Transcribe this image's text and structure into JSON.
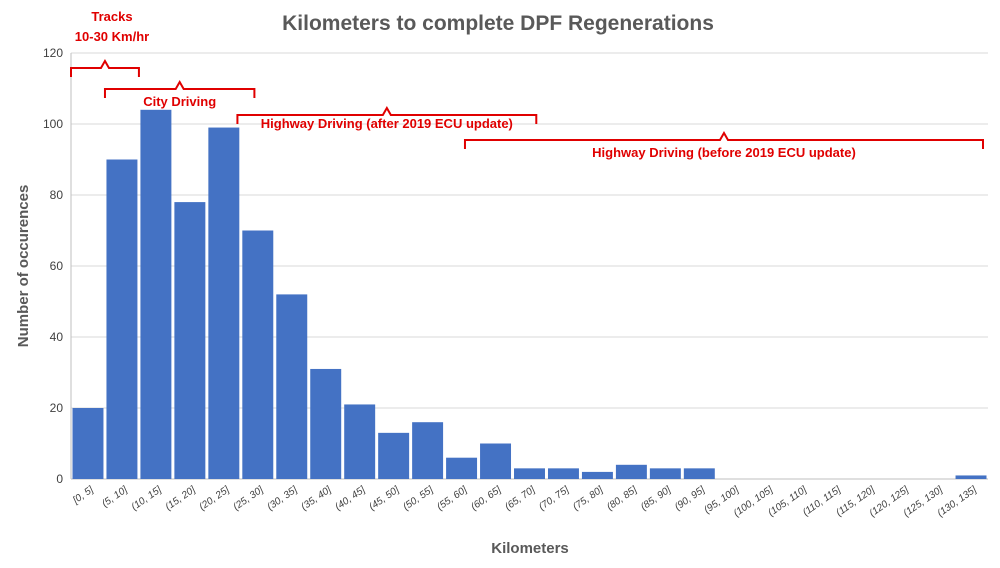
{
  "chart_data": {
    "type": "bar",
    "title": "Kilometers to complete DPF Regenerations",
    "xlabel": "Kilometers",
    "ylabel": "Number of occurences",
    "ylim": [
      0,
      120
    ],
    "yticks": [
      0,
      20,
      40,
      60,
      80,
      100,
      120
    ],
    "grid": true,
    "bar_color": "#4472c4",
    "annotation_color": "#e00000",
    "categories": [
      "[0, 5]",
      "(5, 10]",
      "(10, 15]",
      "(15, 20]",
      "(20, 25]",
      "(25, 30]",
      "(30, 35]",
      "(35, 40]",
      "(40, 45]",
      "(45, 50]",
      "(50, 55]",
      "(55, 60]",
      "(60, 65]",
      "(65, 70]",
      "(70, 75]",
      "(75, 80]",
      "(80, 85]",
      "(85, 90]",
      "(90, 95]",
      "(95, 100]",
      "(100, 105]",
      "(105, 110]",
      "(110, 115]",
      "(115, 120]",
      "(120, 125]",
      "(125, 130]",
      "(130, 135]"
    ],
    "values": [
      20,
      90,
      104,
      78,
      99,
      70,
      52,
      31,
      21,
      13,
      16,
      6,
      10,
      3,
      3,
      2,
      4,
      3,
      3,
      0,
      0,
      0,
      0,
      0,
      0,
      0,
      1
    ],
    "annotations": [
      {
        "lines": [
          "Tracks",
          "10-30 Km/hr"
        ],
        "range_km": [
          0,
          10
        ]
      },
      {
        "lines": [
          "City Driving"
        ],
        "range_km": [
          5,
          27
        ]
      },
      {
        "lines": [
          "Highway Driving (after 2019 ECU update)"
        ],
        "range_km": [
          24.5,
          68.5
        ]
      },
      {
        "lines": [
          "Highway Driving (before 2019 ECU update)"
        ],
        "range_km": [
          58,
          136
        ]
      }
    ]
  }
}
